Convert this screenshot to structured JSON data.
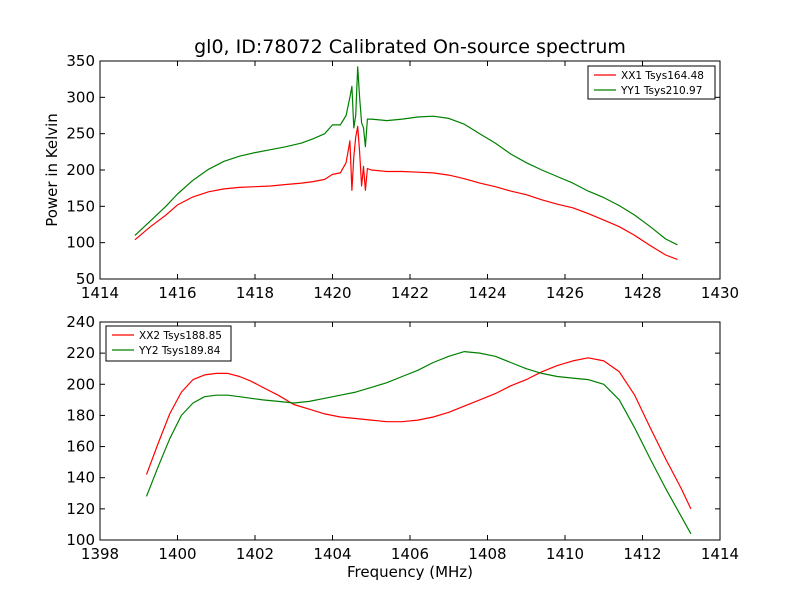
{
  "chart_data": [
    {
      "type": "line",
      "title": "gl0, ID:78072 Calibrated On-source spectrum",
      "xlabel": "",
      "ylabel": "Power in Kelvin",
      "xlim": [
        1414,
        1430
      ],
      "ylim": [
        50,
        350
      ],
      "xticks": [
        1414,
        1416,
        1418,
        1420,
        1422,
        1424,
        1426,
        1428,
        1430
      ],
      "yticks": [
        50,
        100,
        150,
        200,
        250,
        300,
        350
      ],
      "grid": false,
      "legend_position": "top-right",
      "series": [
        {
          "name": "XX1 Tsys164.48",
          "color": "#ff0000",
          "x": [
            1414.9,
            1415.3,
            1415.7,
            1416.0,
            1416.4,
            1416.8,
            1417.2,
            1417.6,
            1418.0,
            1418.4,
            1418.8,
            1419.2,
            1419.5,
            1419.8,
            1420.0,
            1420.2,
            1420.35,
            1420.45,
            1420.5,
            1420.55,
            1420.6,
            1420.65,
            1420.7,
            1420.75,
            1420.8,
            1420.85,
            1420.9,
            1421.0,
            1421.4,
            1421.8,
            1422.2,
            1422.6,
            1423.0,
            1423.4,
            1423.8,
            1424.2,
            1424.6,
            1425.0,
            1425.4,
            1425.8,
            1426.2,
            1426.6,
            1427.0,
            1427.4,
            1427.8,
            1428.2,
            1428.6,
            1428.9
          ],
          "y": [
            104,
            122,
            138,
            152,
            163,
            170,
            174,
            176,
            177,
            178,
            180,
            182,
            184,
            187,
            194,
            196,
            210,
            240,
            172,
            218,
            245,
            260,
            225,
            178,
            205,
            172,
            202,
            200,
            198,
            198,
            197,
            196,
            193,
            188,
            182,
            177,
            171,
            166,
            159,
            153,
            148,
            140,
            131,
            122,
            110,
            96,
            83,
            77
          ]
        },
        {
          "name": "YY1 Tsys210.97",
          "color": "#008000",
          "x": [
            1414.9,
            1415.3,
            1415.7,
            1416.0,
            1416.4,
            1416.8,
            1417.2,
            1417.6,
            1418.0,
            1418.4,
            1418.8,
            1419.2,
            1419.5,
            1419.8,
            1420.0,
            1420.2,
            1420.35,
            1420.45,
            1420.5,
            1420.55,
            1420.6,
            1420.65,
            1420.7,
            1420.75,
            1420.8,
            1420.85,
            1420.9,
            1421.0,
            1421.4,
            1421.8,
            1422.2,
            1422.6,
            1423.0,
            1423.4,
            1423.8,
            1424.2,
            1424.6,
            1425.0,
            1425.4,
            1425.8,
            1426.2,
            1426.6,
            1427.0,
            1427.4,
            1427.8,
            1428.2,
            1428.6,
            1428.9
          ],
          "y": [
            110,
            130,
            150,
            167,
            186,
            201,
            212,
            219,
            224,
            228,
            232,
            237,
            243,
            250,
            262,
            262,
            275,
            300,
            315,
            258,
            275,
            342,
            300,
            265,
            258,
            232,
            270,
            270,
            268,
            270,
            273,
            274,
            271,
            263,
            250,
            237,
            222,
            210,
            200,
            191,
            182,
            171,
            162,
            151,
            138,
            122,
            105,
            97
          ]
        }
      ]
    },
    {
      "type": "line",
      "title": "",
      "xlabel": "Frequency (MHz)",
      "ylabel": "",
      "xlim": [
        1398,
        1414
      ],
      "ylim": [
        100,
        240
      ],
      "xticks": [
        1398,
        1400,
        1402,
        1404,
        1406,
        1408,
        1410,
        1412,
        1414
      ],
      "yticks": [
        100,
        120,
        140,
        160,
        180,
        200,
        220,
        240
      ],
      "grid": false,
      "legend_position": "top-left",
      "series": [
        {
          "name": "XX2 Tsys188.85",
          "color": "#ff0000",
          "x": [
            1399.2,
            1399.5,
            1399.8,
            1400.1,
            1400.4,
            1400.7,
            1401.0,
            1401.3,
            1401.6,
            1401.9,
            1402.2,
            1402.6,
            1403.0,
            1403.4,
            1403.8,
            1404.2,
            1404.6,
            1405.0,
            1405.4,
            1405.8,
            1406.2,
            1406.6,
            1407.0,
            1407.4,
            1407.8,
            1408.2,
            1408.6,
            1409.0,
            1409.4,
            1409.8,
            1410.2,
            1410.6,
            1411.0,
            1411.4,
            1411.8,
            1412.2,
            1412.6,
            1413.0,
            1413.25
          ],
          "y": [
            142,
            162,
            181,
            195,
            203,
            206,
            207,
            207,
            205,
            202,
            198,
            193,
            187,
            184,
            181,
            179,
            178,
            177,
            176,
            176,
            177,
            179,
            182,
            186,
            190,
            194,
            199,
            203,
            208,
            212,
            215,
            217,
            215,
            208,
            193,
            172,
            152,
            133,
            120
          ]
        },
        {
          "name": "YY2 Tsys189.84",
          "color": "#008000",
          "x": [
            1399.2,
            1399.5,
            1399.8,
            1400.1,
            1400.4,
            1400.7,
            1401.0,
            1401.3,
            1401.6,
            1401.9,
            1402.2,
            1402.6,
            1403.0,
            1403.4,
            1403.8,
            1404.2,
            1404.6,
            1405.0,
            1405.4,
            1405.8,
            1406.2,
            1406.6,
            1407.0,
            1407.4,
            1407.8,
            1408.2,
            1408.6,
            1409.0,
            1409.4,
            1409.8,
            1410.2,
            1410.6,
            1411.0,
            1411.4,
            1411.8,
            1412.2,
            1412.6,
            1413.0,
            1413.25
          ],
          "y": [
            128,
            147,
            165,
            180,
            188,
            192,
            193,
            193,
            192,
            191,
            190,
            189,
            188,
            189,
            191,
            193,
            195,
            198,
            201,
            205,
            209,
            214,
            218,
            221,
            220,
            218,
            214,
            210,
            207,
            205,
            204,
            203,
            200,
            190,
            172,
            152,
            133,
            115,
            104
          ]
        }
      ]
    }
  ]
}
